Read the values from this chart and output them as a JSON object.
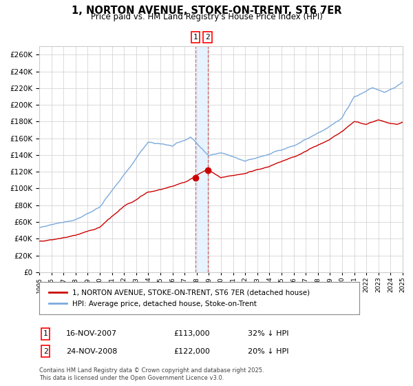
{
  "title": "1, NORTON AVENUE, STOKE-ON-TRENT, ST6 7ER",
  "subtitle": "Price paid vs. HM Land Registry's House Price Index (HPI)",
  "title_fontsize": 10.5,
  "subtitle_fontsize": 8.5,
  "hpi_color": "#7aaadd",
  "price_color": "#cc0000",
  "marker_color": "#cc0000",
  "vline_color": "#dd6666",
  "vshade_color": "#ddeeff",
  "grid_color": "#cccccc",
  "background_color": "#ffffff",
  "ylim": [
    0,
    270000
  ],
  "ytick_step": 20000,
  "x_start_year": 1995,
  "x_end_year": 2025,
  "transaction1_date": 2007.88,
  "transaction1_price": 113000,
  "transaction1_label": "1",
  "transaction1_text": "16-NOV-2007",
  "transaction1_price_text": "£113,000",
  "transaction1_hpi_text": "32% ↓ HPI",
  "transaction2_date": 2008.9,
  "transaction2_price": 122000,
  "transaction2_label": "2",
  "transaction2_text": "24-NOV-2008",
  "transaction2_price_text": "£122,000",
  "transaction2_hpi_text": "20% ↓ HPI",
  "legend_line1": "1, NORTON AVENUE, STOKE-ON-TRENT, ST6 7ER (detached house)",
  "legend_line2": "HPI: Average price, detached house, Stoke-on-Trent",
  "footnote": "Contains HM Land Registry data © Crown copyright and database right 2025.\nThis data is licensed under the Open Government Licence v3.0."
}
